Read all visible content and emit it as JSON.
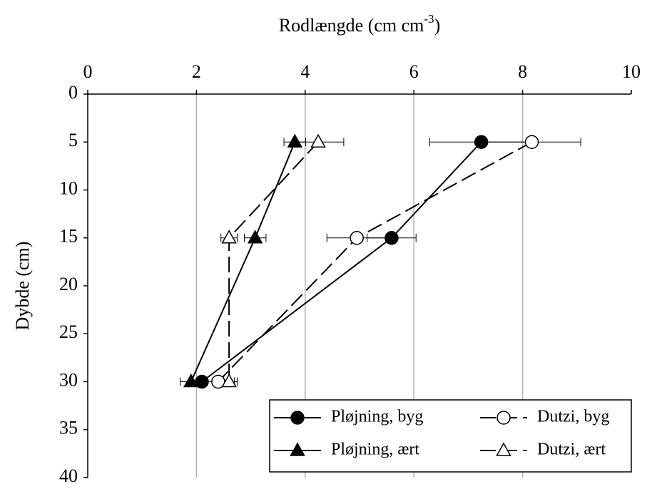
{
  "chart_data": {
    "type": "profile",
    "title": [
      "Rodlængde (cm cm",
      "-3",
      ")"
    ],
    "y_label": "Dybde (cm)",
    "xlim": [
      0,
      10
    ],
    "xticks": [
      0,
      2,
      4,
      6,
      8,
      10
    ],
    "ylim": [
      0,
      40
    ],
    "yticks": [
      0,
      5,
      10,
      15,
      20,
      25,
      30,
      35,
      40
    ],
    "y_inverted": true,
    "grid": true,
    "y": [
      5,
      15,
      30
    ],
    "series": [
      {
        "name": "Pløjning, byg",
        "marker": "circle",
        "filled": true,
        "dashed": false,
        "color": "#000000",
        "values": [
          7.24,
          5.59,
          2.1
        ],
        "errors": [
          0.95,
          0.45,
          0.2
        ]
      },
      {
        "name": "Dutzi, byg",
        "marker": "circle",
        "filled": false,
        "dashed": true,
        "color": "#000000",
        "values": [
          8.17,
          4.95,
          2.4
        ],
        "errors": [
          0.9,
          0.55,
          0.35
        ]
      },
      {
        "name": "Pløjning, ært",
        "marker": "triangle",
        "filled": true,
        "dashed": false,
        "color": "#000000",
        "values": [
          3.81,
          3.08,
          1.9
        ],
        "errors": [
          0.2,
          0.2,
          0.2
        ]
      },
      {
        "name": "Dutzi, ært",
        "marker": "triangle",
        "filled": false,
        "dashed": true,
        "color": "#000000",
        "values": [
          4.24,
          2.6,
          2.6
        ],
        "errors": [
          0.47,
          0.15,
          0.1
        ]
      }
    ]
  }
}
